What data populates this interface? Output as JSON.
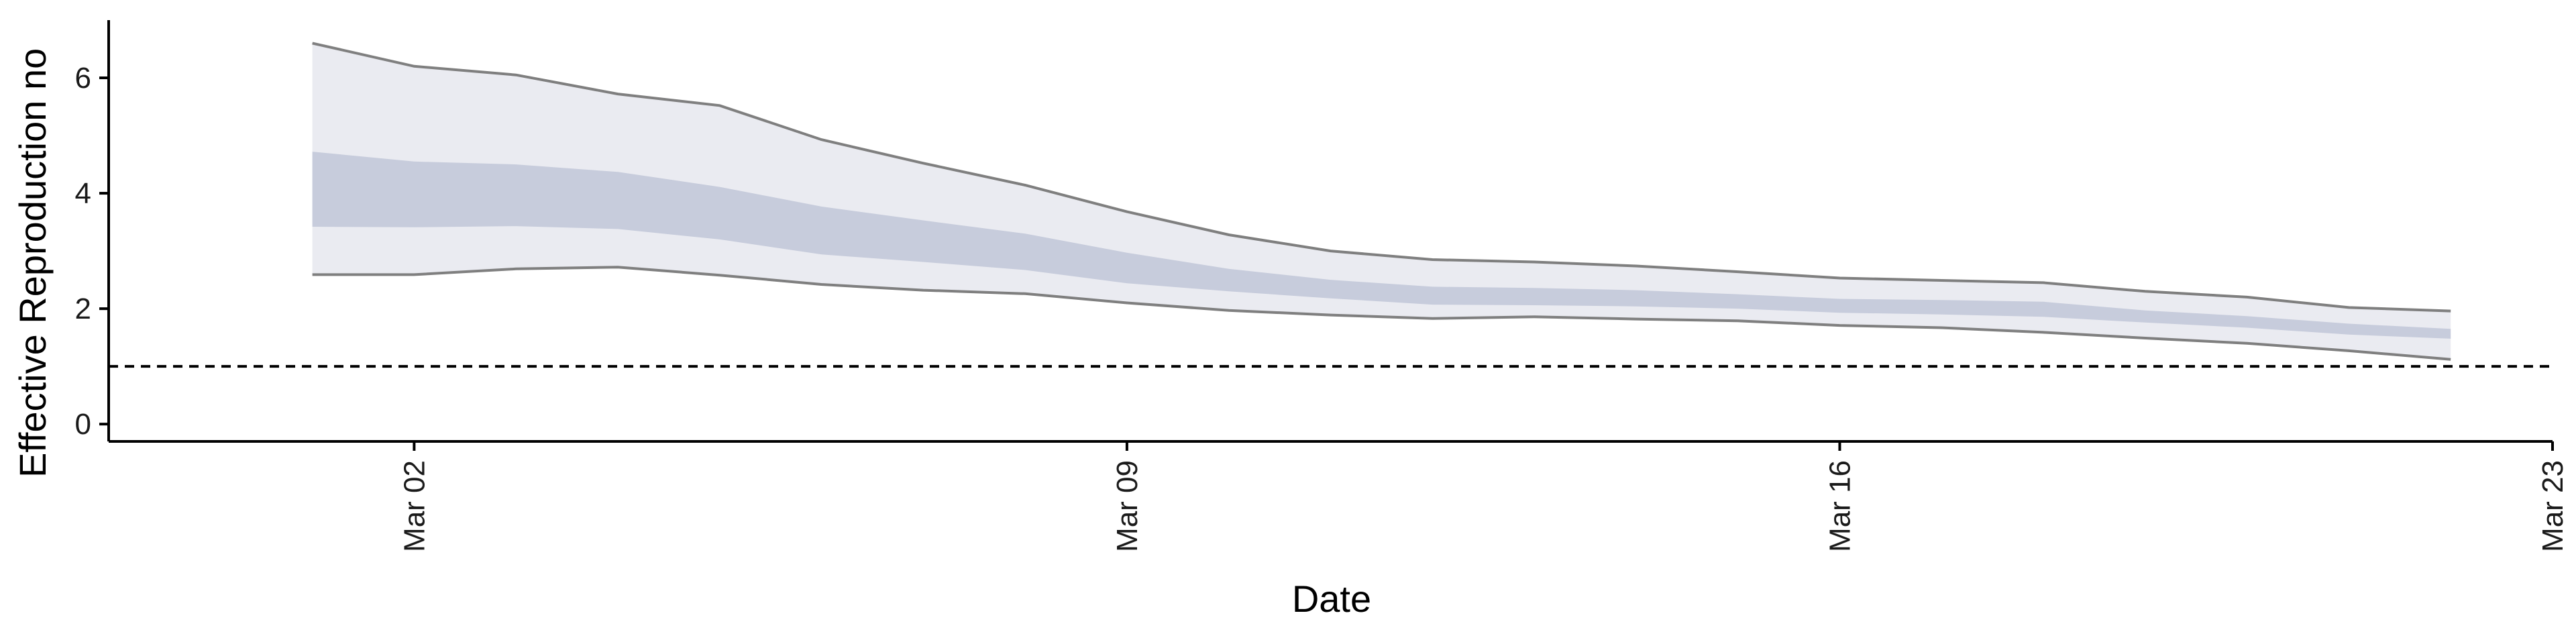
{
  "chart_data": {
    "type": "area",
    "xlabel": "Date",
    "ylabel": "Effective Reproduction no",
    "x_tick_labels": [
      "Mar 02",
      "Mar 09",
      "Mar 16",
      "Mar 23"
    ],
    "x_tick_days": [
      2,
      9,
      16,
      23
    ],
    "xlim": [
      -1,
      23
    ],
    "y_tick_labels": [
      "0",
      "2",
      "4",
      "6"
    ],
    "y_tick_values": [
      0,
      2,
      4,
      6
    ],
    "ylim": [
      -0.3,
      7.0
    ],
    "reference_line": {
      "y": 1,
      "style": "dashed"
    },
    "series": [
      {
        "x_days": [
          1,
          2,
          3,
          4,
          5,
          6,
          7,
          8,
          9,
          10,
          11,
          12,
          13,
          14,
          15,
          16,
          17,
          18,
          19,
          20,
          21,
          22
        ],
        "upper_95": [
          6.6,
          6.2,
          6.05,
          5.72,
          5.52,
          4.93,
          4.52,
          4.14,
          3.68,
          3.28,
          3.0,
          2.85,
          2.81,
          2.74,
          2.64,
          2.53,
          2.49,
          2.45,
          2.3,
          2.2,
          2.02,
          1.96
        ],
        "upper_50": [
          4.72,
          4.55,
          4.5,
          4.37,
          4.11,
          3.77,
          3.53,
          3.3,
          2.97,
          2.69,
          2.5,
          2.38,
          2.36,
          2.32,
          2.25,
          2.17,
          2.15,
          2.12,
          1.97,
          1.87,
          1.74,
          1.65
        ],
        "lower_50": [
          3.42,
          3.41,
          3.43,
          3.38,
          3.2,
          2.94,
          2.81,
          2.67,
          2.44,
          2.3,
          2.18,
          2.07,
          2.06,
          2.04,
          2.0,
          1.93,
          1.9,
          1.86,
          1.76,
          1.67,
          1.55,
          1.48
        ],
        "lower_95": [
          2.59,
          2.59,
          2.69,
          2.72,
          2.58,
          2.42,
          2.32,
          2.26,
          2.1,
          1.97,
          1.89,
          1.83,
          1.86,
          1.82,
          1.79,
          1.71,
          1.67,
          1.59,
          1.49,
          1.4,
          1.27,
          1.12
        ]
      }
    ],
    "colors": {
      "band_95": "#eaebf1",
      "band_50": "#c7ccdc",
      "outline": "#7f7f7f",
      "axis": "#000000",
      "dashed_line": "#000000"
    }
  }
}
